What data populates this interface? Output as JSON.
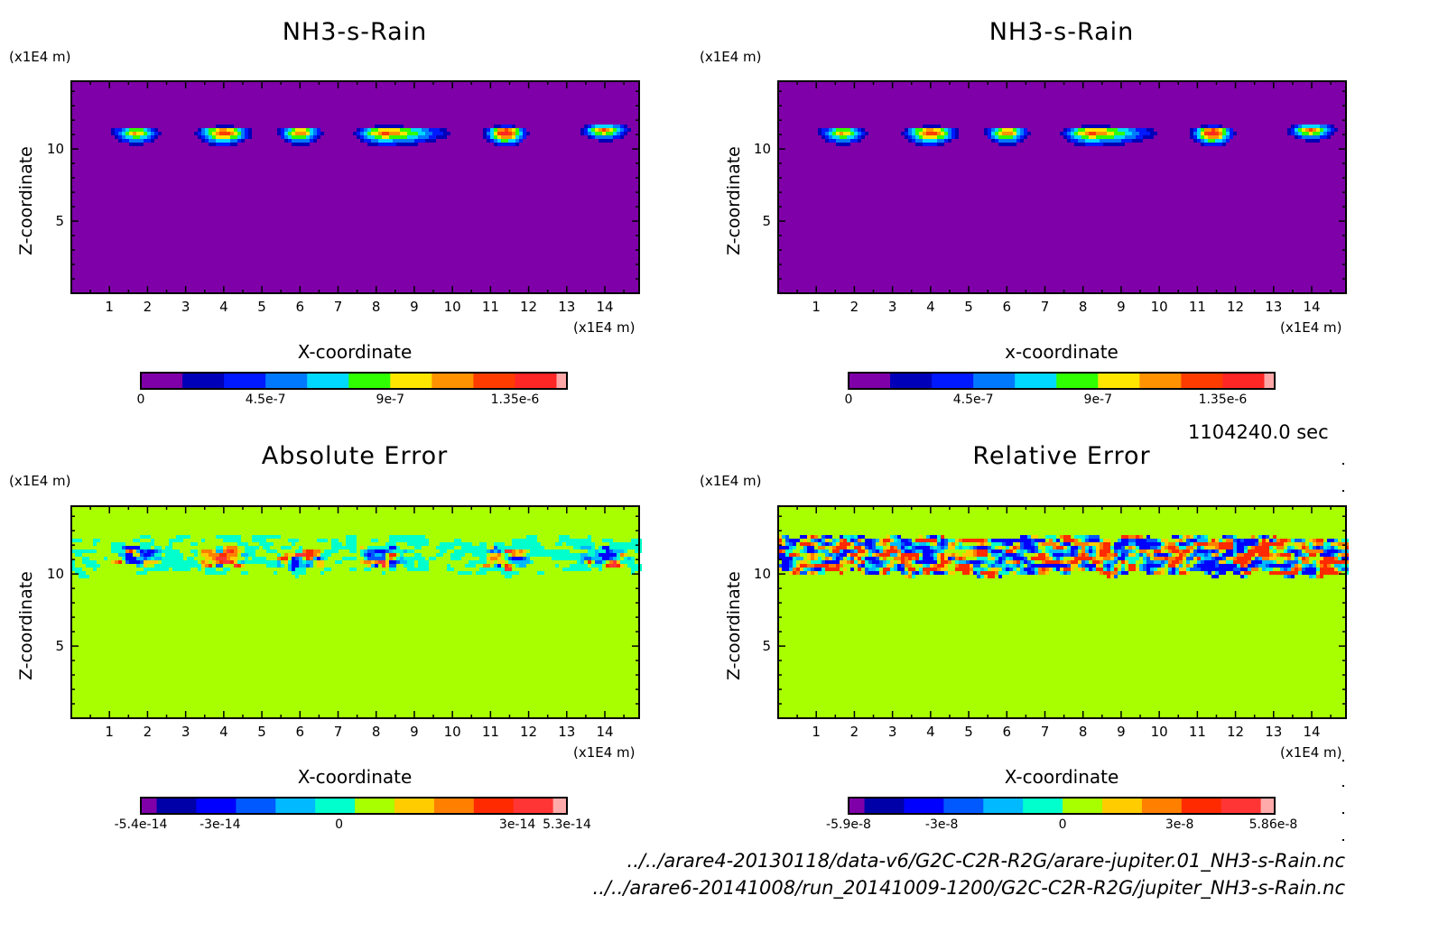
{
  "figure": {
    "time_label": "1104240.0 sec",
    "file_paths": [
      "../../arare4-20130118/data-v6/G2C-C2R-R2G/arare-jupiter.01_NH3-s-Rain.nc",
      "../../arare6-20141008/run_20141009-1200/G2C-C2R-R2G/jupiter_NH3-s-Rain.nc"
    ]
  },
  "chart_data": [
    {
      "id": "tl",
      "type": "heatmap",
      "title": "NH3-s-Rain",
      "xlabel": "X-coordinate",
      "ylabel": "Z-coordinate",
      "x_unit": "(x1E4 m)",
      "y_unit": "(x1E4 m)",
      "xlim": [
        0,
        14.9
      ],
      "ylim": [
        0,
        14.7
      ],
      "x_ticks": [
        "1",
        "2",
        "3",
        "4",
        "5",
        "6",
        "7",
        "8",
        "9",
        "10",
        "11",
        "12",
        "13",
        "14"
      ],
      "y_ticks": [
        "5",
        "10"
      ],
      "background_level": 0,
      "field": "blobs",
      "blobs": [
        {
          "x": 1.7,
          "z": 11.2,
          "w": 1.3,
          "h": 1.3,
          "peak": 7
        },
        {
          "x": 4.0,
          "z": 11.2,
          "w": 1.5,
          "h": 1.4,
          "peak": 9
        },
        {
          "x": 6.0,
          "z": 11.2,
          "w": 1.2,
          "h": 1.3,
          "peak": 8
        },
        {
          "x": 8.2,
          "z": 11.2,
          "w": 1.6,
          "h": 1.4,
          "peak": 8,
          "tail": 1.3
        },
        {
          "x": 11.4,
          "z": 11.2,
          "w": 1.2,
          "h": 1.5,
          "peak": 10
        },
        {
          "x": 14.0,
          "z": 11.4,
          "w": 1.3,
          "h": 1.2,
          "peak": 8
        }
      ],
      "colorbar": {
        "colors": [
          "#7f00a8",
          "#0000b8",
          "#0019ff",
          "#0079ff",
          "#00d9ff",
          "#2fff00",
          "#ffe600",
          "#ff9200",
          "#ff3c00",
          "#ff2626",
          "#ffa7a7"
        ],
        "tick_labels": [
          "0",
          "4.5e-7",
          "9e-7",
          "1.35e-6"
        ],
        "tick_positions": [
          0,
          3,
          6,
          9
        ],
        "range": [
          0,
          1.5e-06
        ]
      }
    },
    {
      "id": "tr",
      "type": "heatmap",
      "title": "NH3-s-Rain",
      "xlabel": "x-coordinate",
      "ylabel": "Z-coordinate",
      "x_unit": "(x1E4 m)",
      "y_unit": "(x1E4 m)",
      "xlim": [
        0,
        14.9
      ],
      "ylim": [
        0,
        14.7
      ],
      "x_ticks": [
        "1",
        "2",
        "3",
        "4",
        "5",
        "6",
        "7",
        "8",
        "9",
        "10",
        "11",
        "12",
        "13",
        "14"
      ],
      "y_ticks": [
        "5",
        "10"
      ],
      "background_level": 0,
      "field": "blobs",
      "blobs": [
        {
          "x": 1.7,
          "z": 11.2,
          "w": 1.3,
          "h": 1.3,
          "peak": 7
        },
        {
          "x": 4.0,
          "z": 11.2,
          "w": 1.5,
          "h": 1.4,
          "peak": 9
        },
        {
          "x": 6.0,
          "z": 11.2,
          "w": 1.2,
          "h": 1.3,
          "peak": 8
        },
        {
          "x": 8.2,
          "z": 11.2,
          "w": 1.6,
          "h": 1.4,
          "peak": 8,
          "tail": 1.3
        },
        {
          "x": 11.4,
          "z": 11.2,
          "w": 1.2,
          "h": 1.5,
          "peak": 10
        },
        {
          "x": 14.0,
          "z": 11.4,
          "w": 1.3,
          "h": 1.2,
          "peak": 8
        }
      ],
      "colorbar": {
        "colors": [
          "#7f00a8",
          "#0000b8",
          "#0019ff",
          "#0079ff",
          "#00d9ff",
          "#2fff00",
          "#ffe600",
          "#ff9200",
          "#ff3c00",
          "#ff2626",
          "#ffa7a7"
        ],
        "tick_labels": [
          "0",
          "4.5e-7",
          "9e-7",
          "1.35e-6"
        ],
        "tick_positions": [
          0,
          3,
          6,
          9
        ],
        "range": [
          0,
          1.5e-06
        ]
      }
    },
    {
      "id": "bl",
      "type": "heatmap",
      "title": "Absolute Error",
      "xlabel": "X-coordinate",
      "ylabel": "Z-coordinate",
      "x_unit": "(x1E4 m)",
      "y_unit": "(x1E4 m)",
      "xlim": [
        0,
        14.9
      ],
      "ylim": [
        0,
        14.7
      ],
      "x_ticks": [
        "1",
        "2",
        "3",
        "4",
        "5",
        "6",
        "7",
        "8",
        "9",
        "10",
        "11",
        "12",
        "13",
        "14"
      ],
      "y_ticks": [
        "5",
        "10"
      ],
      "background_level": 6,
      "field": "noise-band",
      "band": {
        "z_min": 10.0,
        "z_max": 12.6,
        "amplitude": "weak",
        "hotspots_x": [
          1.7,
          4.0,
          6.0,
          8.2,
          11.4,
          14.0
        ]
      },
      "colorbar": {
        "colors": [
          "#7f00a8",
          "#0000a8",
          "#0000ff",
          "#0059ff",
          "#00b9ff",
          "#00ffcc",
          "#a8ff00",
          "#ffcc00",
          "#ff7f00",
          "#ff2a00",
          "#ff3535",
          "#ffaaaa"
        ],
        "tick_labels": [
          "-5.4e-14",
          "-3e-14",
          "0",
          "3e-14",
          "5.3e-14"
        ],
        "tick_positions": [
          0,
          2.6,
          5.6,
          10.1,
          12
        ],
        "range": [
          -5.4e-14,
          5.3e-14
        ]
      }
    },
    {
      "id": "br",
      "type": "heatmap",
      "title": "Relative Error",
      "xlabel": "X-coordinate",
      "ylabel": "Z-coordinate",
      "x_unit": "(x1E4 m)",
      "y_unit": "(x1E4 m)",
      "xlim": [
        0,
        14.9
      ],
      "ylim": [
        0,
        14.7
      ],
      "x_ticks": [
        "1",
        "2",
        "3",
        "4",
        "5",
        "6",
        "7",
        "8",
        "9",
        "10",
        "11",
        "12",
        "13",
        "14"
      ],
      "y_ticks": [
        "5",
        "10"
      ],
      "background_level": 6,
      "field": "noise-band",
      "band": {
        "z_min": 10.0,
        "z_max": 12.6,
        "amplitude": "strong",
        "hotspots_x": []
      },
      "colorbar": {
        "colors": [
          "#7f00a8",
          "#0000a8",
          "#0000ff",
          "#0059ff",
          "#00b9ff",
          "#00ffcc",
          "#a8ff00",
          "#ffcc00",
          "#ff7f00",
          "#ff2a00",
          "#ff3535",
          "#ffaaaa"
        ],
        "tick_labels": [
          "-5.9e-8",
          "-3e-8",
          "0",
          "3e-8",
          "5.86e-8"
        ],
        "tick_positions": [
          0,
          2.95,
          6,
          8.95,
          11.9
        ],
        "range": [
          -5.9e-08,
          5.86e-08
        ]
      }
    }
  ]
}
